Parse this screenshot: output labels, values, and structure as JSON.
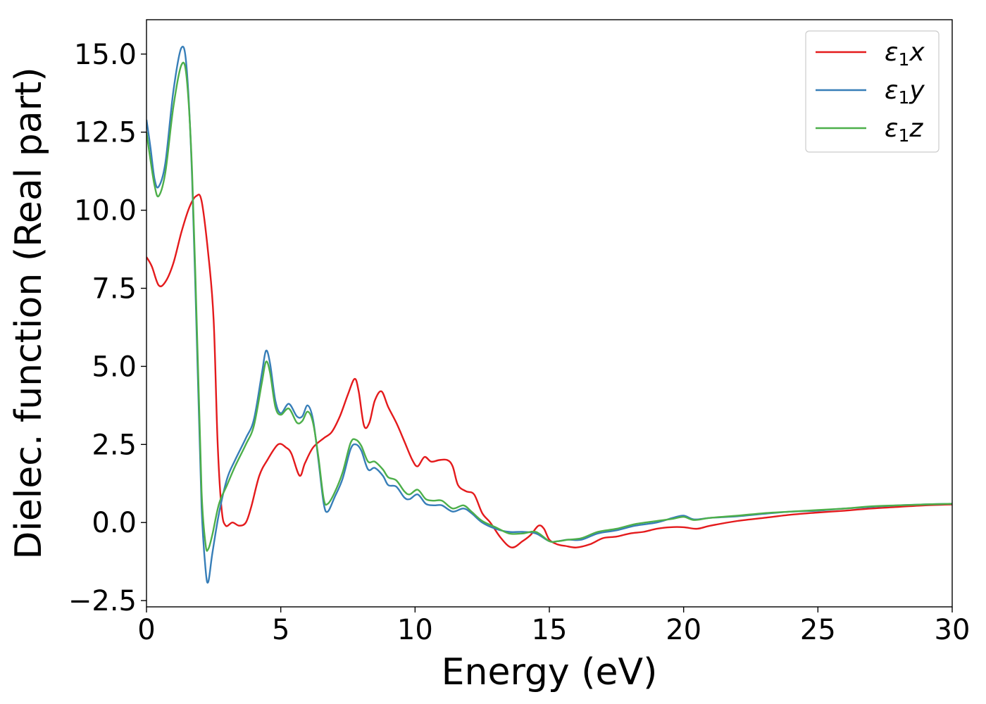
{
  "chart_data": {
    "type": "line",
    "xlabel": "Energy (eV)",
    "ylabel": "Dielec. function (Real part)",
    "xlim": [
      0,
      30
    ],
    "ylim": [
      -2.7,
      16.1
    ],
    "x_ticks": [
      0,
      5,
      10,
      15,
      20,
      25,
      30
    ],
    "x_tick_labels": [
      "0",
      "5",
      "10",
      "15",
      "20",
      "25",
      "30"
    ],
    "y_ticks": [
      -2.5,
      0.0,
      2.5,
      5.0,
      7.5,
      10.0,
      12.5,
      15.0
    ],
    "y_tick_labels": [
      "−2.5",
      "0.0",
      "2.5",
      "5.0",
      "7.5",
      "10.0",
      "12.5",
      "15.0"
    ],
    "grid": false,
    "legend_position": "top-right",
    "series": [
      {
        "name": "ε₁x",
        "legend": {
          "symbol": "ε",
          "sub": "1",
          "axis": "x"
        },
        "color": "#e41a1c",
        "points": [
          [
            0,
            8.5
          ],
          [
            0.2,
            8.2
          ],
          [
            0.45,
            7.6
          ],
          [
            0.7,
            7.7
          ],
          [
            1.0,
            8.3
          ],
          [
            1.3,
            9.3
          ],
          [
            1.6,
            10.1
          ],
          [
            1.85,
            10.45
          ],
          [
            2.05,
            10.3
          ],
          [
            2.3,
            8.6
          ],
          [
            2.5,
            6.5
          ],
          [
            2.65,
            2.5
          ],
          [
            2.8,
            0.4
          ],
          [
            2.95,
            -0.1
          ],
          [
            3.2,
            0.0
          ],
          [
            3.45,
            -0.1
          ],
          [
            3.7,
            0.0
          ],
          [
            3.9,
            0.5
          ],
          [
            4.2,
            1.5
          ],
          [
            4.5,
            2.0
          ],
          [
            4.9,
            2.5
          ],
          [
            5.2,
            2.4
          ],
          [
            5.4,
            2.2
          ],
          [
            5.7,
            1.5
          ],
          [
            5.9,
            1.9
          ],
          [
            6.2,
            2.4
          ],
          [
            6.6,
            2.7
          ],
          [
            6.9,
            2.9
          ],
          [
            7.2,
            3.4
          ],
          [
            7.5,
            4.1
          ],
          [
            7.75,
            4.6
          ],
          [
            7.9,
            4.2
          ],
          [
            8.1,
            3.1
          ],
          [
            8.3,
            3.2
          ],
          [
            8.5,
            3.9
          ],
          [
            8.75,
            4.2
          ],
          [
            9.0,
            3.7
          ],
          [
            9.3,
            3.2
          ],
          [
            9.6,
            2.6
          ],
          [
            9.9,
            2.0
          ],
          [
            10.1,
            1.8
          ],
          [
            10.35,
            2.1
          ],
          [
            10.6,
            1.95
          ],
          [
            10.9,
            2.0
          ],
          [
            11.2,
            2.0
          ],
          [
            11.4,
            1.8
          ],
          [
            11.6,
            1.2
          ],
          [
            11.9,
            1.0
          ],
          [
            12.2,
            0.9
          ],
          [
            12.5,
            0.3
          ],
          [
            12.8,
            0.0
          ],
          [
            13.2,
            -0.5
          ],
          [
            13.6,
            -0.8
          ],
          [
            14.0,
            -0.6
          ],
          [
            14.3,
            -0.4
          ],
          [
            14.6,
            -0.1
          ],
          [
            14.8,
            -0.2
          ],
          [
            15.0,
            -0.55
          ],
          [
            15.3,
            -0.7
          ],
          [
            15.6,
            -0.75
          ],
          [
            16.0,
            -0.8
          ],
          [
            16.5,
            -0.7
          ],
          [
            17.0,
            -0.5
          ],
          [
            17.5,
            -0.45
          ],
          [
            18.0,
            -0.35
          ],
          [
            18.5,
            -0.3
          ],
          [
            19.0,
            -0.2
          ],
          [
            19.5,
            -0.15
          ],
          [
            20.0,
            -0.15
          ],
          [
            20.5,
            -0.2
          ],
          [
            21.0,
            -0.1
          ],
          [
            22.0,
            0.05
          ],
          [
            23.0,
            0.15
          ],
          [
            24.0,
            0.25
          ],
          [
            25.0,
            0.32
          ],
          [
            26.0,
            0.38
          ],
          [
            27.0,
            0.45
          ],
          [
            28.0,
            0.5
          ],
          [
            29.0,
            0.55
          ],
          [
            30.0,
            0.58
          ]
        ]
      },
      {
        "name": "ε₁y",
        "legend": {
          "symbol": "ε",
          "sub": "1",
          "axis": "y"
        },
        "color": "#377eb8",
        "points": [
          [
            0,
            12.9
          ],
          [
            0.15,
            12.0
          ],
          [
            0.3,
            11.0
          ],
          [
            0.45,
            10.75
          ],
          [
            0.7,
            11.5
          ],
          [
            1.0,
            13.8
          ],
          [
            1.3,
            15.2
          ],
          [
            1.5,
            14.5
          ],
          [
            1.7,
            11.0
          ],
          [
            1.9,
            5.0
          ],
          [
            2.05,
            0.5
          ],
          [
            2.2,
            -1.5
          ],
          [
            2.3,
            -1.9
          ],
          [
            2.45,
            -1.0
          ],
          [
            2.7,
            0.3
          ],
          [
            3.0,
            1.4
          ],
          [
            3.3,
            2.0
          ],
          [
            3.7,
            2.7
          ],
          [
            4.0,
            3.3
          ],
          [
            4.3,
            4.8
          ],
          [
            4.45,
            5.5
          ],
          [
            4.6,
            5.1
          ],
          [
            4.8,
            3.9
          ],
          [
            5.0,
            3.5
          ],
          [
            5.3,
            3.8
          ],
          [
            5.6,
            3.4
          ],
          [
            5.8,
            3.4
          ],
          [
            6.0,
            3.75
          ],
          [
            6.2,
            3.3
          ],
          [
            6.4,
            2.0
          ],
          [
            6.6,
            0.6
          ],
          [
            6.75,
            0.35
          ],
          [
            7.0,
            0.8
          ],
          [
            7.3,
            1.4
          ],
          [
            7.6,
            2.35
          ],
          [
            7.8,
            2.5
          ],
          [
            8.0,
            2.3
          ],
          [
            8.25,
            1.7
          ],
          [
            8.5,
            1.75
          ],
          [
            8.8,
            1.5
          ],
          [
            9.0,
            1.2
          ],
          [
            9.3,
            1.15
          ],
          [
            9.6,
            0.8
          ],
          [
            9.8,
            0.75
          ],
          [
            10.1,
            0.9
          ],
          [
            10.4,
            0.6
          ],
          [
            10.7,
            0.55
          ],
          [
            11.0,
            0.55
          ],
          [
            11.4,
            0.35
          ],
          [
            11.8,
            0.45
          ],
          [
            12.1,
            0.3
          ],
          [
            12.5,
            0.0
          ],
          [
            13.0,
            -0.2
          ],
          [
            13.5,
            -0.3
          ],
          [
            14.0,
            -0.3
          ],
          [
            14.5,
            -0.35
          ],
          [
            15.0,
            -0.6
          ],
          [
            15.3,
            -0.6
          ],
          [
            15.7,
            -0.55
          ],
          [
            16.2,
            -0.55
          ],
          [
            16.8,
            -0.35
          ],
          [
            17.5,
            -0.25
          ],
          [
            18.2,
            -0.1
          ],
          [
            19.0,
            0.0
          ],
          [
            19.6,
            0.15
          ],
          [
            20.0,
            0.22
          ],
          [
            20.4,
            0.1
          ],
          [
            21.0,
            0.15
          ],
          [
            22.0,
            0.2
          ],
          [
            23.0,
            0.28
          ],
          [
            24.0,
            0.35
          ],
          [
            25.0,
            0.38
          ],
          [
            26.0,
            0.45
          ],
          [
            27.0,
            0.5
          ],
          [
            28.0,
            0.55
          ],
          [
            29.0,
            0.58
          ],
          [
            30.0,
            0.6
          ]
        ]
      },
      {
        "name": "ε₁z",
        "legend": {
          "symbol": "ε",
          "sub": "1",
          "axis": "z"
        },
        "color": "#4daf4a",
        "points": [
          [
            0,
            12.5
          ],
          [
            0.15,
            11.6
          ],
          [
            0.3,
            10.8
          ],
          [
            0.45,
            10.45
          ],
          [
            0.7,
            11.2
          ],
          [
            1.0,
            13.3
          ],
          [
            1.3,
            14.65
          ],
          [
            1.5,
            14.2
          ],
          [
            1.7,
            11.2
          ],
          [
            1.9,
            5.5
          ],
          [
            2.05,
            1.0
          ],
          [
            2.2,
            -0.7
          ],
          [
            2.3,
            -0.85
          ],
          [
            2.45,
            -0.4
          ],
          [
            2.7,
            0.6
          ],
          [
            3.0,
            1.2
          ],
          [
            3.3,
            1.8
          ],
          [
            3.7,
            2.5
          ],
          [
            4.0,
            3.1
          ],
          [
            4.3,
            4.5
          ],
          [
            4.45,
            5.15
          ],
          [
            4.6,
            4.8
          ],
          [
            4.8,
            3.7
          ],
          [
            5.0,
            3.45
          ],
          [
            5.3,
            3.65
          ],
          [
            5.6,
            3.2
          ],
          [
            5.8,
            3.25
          ],
          [
            6.0,
            3.55
          ],
          [
            6.2,
            3.2
          ],
          [
            6.4,
            2.1
          ],
          [
            6.6,
            0.75
          ],
          [
            6.75,
            0.6
          ],
          [
            7.0,
            0.95
          ],
          [
            7.3,
            1.6
          ],
          [
            7.6,
            2.55
          ],
          [
            7.8,
            2.65
          ],
          [
            8.0,
            2.45
          ],
          [
            8.25,
            1.95
          ],
          [
            8.5,
            1.95
          ],
          [
            8.8,
            1.7
          ],
          [
            9.0,
            1.45
          ],
          [
            9.3,
            1.35
          ],
          [
            9.6,
            1.0
          ],
          [
            9.8,
            0.9
          ],
          [
            10.1,
            1.05
          ],
          [
            10.4,
            0.75
          ],
          [
            10.7,
            0.7
          ],
          [
            11.0,
            0.7
          ],
          [
            11.4,
            0.45
          ],
          [
            11.8,
            0.55
          ],
          [
            12.1,
            0.35
          ],
          [
            12.5,
            0.05
          ],
          [
            13.0,
            -0.15
          ],
          [
            13.5,
            -0.35
          ],
          [
            14.0,
            -0.35
          ],
          [
            14.5,
            -0.3
          ],
          [
            15.0,
            -0.6
          ],
          [
            15.3,
            -0.6
          ],
          [
            15.7,
            -0.55
          ],
          [
            16.2,
            -0.5
          ],
          [
            16.8,
            -0.3
          ],
          [
            17.5,
            -0.2
          ],
          [
            18.2,
            -0.05
          ],
          [
            19.0,
            0.05
          ],
          [
            19.6,
            0.12
          ],
          [
            20.0,
            0.18
          ],
          [
            20.4,
            0.08
          ],
          [
            21.0,
            0.15
          ],
          [
            22.0,
            0.22
          ],
          [
            23.0,
            0.3
          ],
          [
            24.0,
            0.35
          ],
          [
            25.0,
            0.4
          ],
          [
            26.0,
            0.45
          ],
          [
            27.0,
            0.52
          ],
          [
            28.0,
            0.55
          ],
          [
            29.0,
            0.58
          ],
          [
            30.0,
            0.6
          ]
        ]
      }
    ]
  }
}
